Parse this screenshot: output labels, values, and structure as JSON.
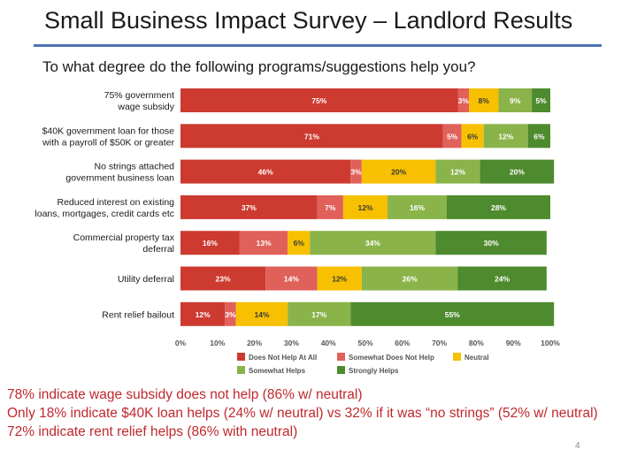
{
  "slide": {
    "title": "Small Business Impact Survey – Landlord Results",
    "question": "To what degree do the following programs/suggestions help you?",
    "page_number": "4"
  },
  "findings": [
    "78% indicate wage subsidy does not help (86% w/ neutral)",
    "Only 18% indicate $40K loan helps (24% w/ neutral) vs 32% if it was “no strings” (52% w/ neutral)",
    "72% indicate rent relief helps (86% with neutral)"
  ],
  "chart_data": {
    "type": "bar",
    "orientation": "horizontal",
    "stacked": true,
    "xlim": [
      0,
      100
    ],
    "x_ticks": [
      "0%",
      "10%",
      "20%",
      "30%",
      "40%",
      "50%",
      "60%",
      "70%",
      "80%",
      "90%",
      "100%"
    ],
    "categories": [
      [
        "75% government",
        "wage subsidy"
      ],
      [
        "$40K government loan for those",
        "with a payroll of $50K or greater"
      ],
      [
        "No strings attached",
        "government business loan"
      ],
      [
        "Reduced interest on existing",
        "loans, mortgages, credit cards etc"
      ],
      [
        "Commercial property tax",
        "deferral"
      ],
      [
        "Utility deferral"
      ],
      [
        "Rent relief bailout"
      ]
    ],
    "series": [
      {
        "name": "Does Not Help At All",
        "color": "#cc3a30",
        "values": [
          75,
          71,
          46,
          37,
          16,
          23,
          12
        ]
      },
      {
        "name": "Somewhat Does Not Help",
        "color": "#e0605a",
        "values": [
          3,
          5,
          3,
          7,
          13,
          14,
          3
        ]
      },
      {
        "name": "Neutral",
        "color": "#f7c000",
        "values": [
          8,
          6,
          20,
          12,
          6,
          12,
          14
        ]
      },
      {
        "name": "Somewhat Helps",
        "color": "#8ab34a",
        "values": [
          9,
          12,
          12,
          16,
          34,
          26,
          17
        ]
      },
      {
        "name": "Strongly Helps",
        "color": "#4e8a2e",
        "values": [
          5,
          6,
          20,
          28,
          30,
          24,
          55
        ]
      }
    ],
    "legend_position": "bottom",
    "grid": false
  }
}
